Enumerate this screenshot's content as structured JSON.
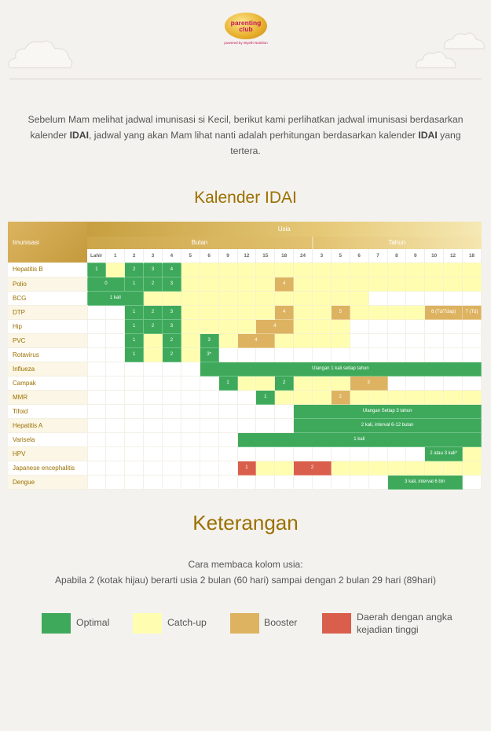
{
  "brand": {
    "logo_line1": "parenting",
    "logo_line2": "club",
    "logo_sub": "powered by Wyeth Nutrition"
  },
  "intro": {
    "part1": "Sebelum Mam melihat jadwal imunisasi si Kecil, berikut kami perlihatkan jadwal imunisasi berdasarkan kalender ",
    "bold1": "IDAI",
    "part2": ", jadwal yang akan Mam lihat nanti adalah perhitungan berdasarkan kalender ",
    "bold2": "IDAI",
    "part3": " yang tertera."
  },
  "calendar": {
    "title": "Kalender IDAI",
    "header_immunization": "Imunisasi",
    "header_age": "Usia",
    "header_months": "Bulan",
    "header_years": "Tahun",
    "ages": [
      "Lahir",
      "1",
      "2",
      "3",
      "4",
      "5",
      "6",
      "9",
      "12",
      "15",
      "18",
      "24",
      "3",
      "5",
      "6",
      "7",
      "8",
      "9",
      "10",
      "12",
      "18"
    ],
    "rows": [
      {
        "name": "Hepatitis B",
        "cells": [
          [
            "g",
            "1"
          ],
          [
            "y",
            ""
          ],
          [
            "g",
            "2"
          ],
          [
            "g",
            "3"
          ],
          [
            "g",
            "4"
          ],
          [
            "y",
            ""
          ],
          [
            "y",
            ""
          ],
          [
            "y",
            ""
          ],
          [
            "y",
            ""
          ],
          [
            "y",
            ""
          ],
          [
            "y",
            ""
          ],
          [
            "y",
            ""
          ],
          [
            "y",
            ""
          ],
          [
            "y",
            ""
          ],
          [
            "y",
            ""
          ],
          [
            "y",
            ""
          ],
          [
            "y",
            ""
          ],
          [
            "y",
            ""
          ],
          [
            "y",
            ""
          ],
          [
            "y",
            ""
          ],
          [
            "y",
            ""
          ]
        ]
      },
      {
        "name": "Polio",
        "cells": [
          [
            "g",
            "0",
            2
          ],
          [
            "g",
            "1"
          ],
          [
            "g",
            "2"
          ],
          [
            "g",
            "3"
          ],
          [
            "y",
            ""
          ],
          [
            "y",
            ""
          ],
          [
            "y",
            ""
          ],
          [
            "y",
            ""
          ],
          [
            "y",
            ""
          ],
          [
            "b",
            "4"
          ],
          [
            "y",
            ""
          ],
          [
            "y",
            ""
          ],
          [
            "y",
            ""
          ],
          [
            "y",
            ""
          ],
          [
            "y",
            ""
          ],
          [
            "y",
            ""
          ],
          [
            "y",
            ""
          ],
          [
            "y",
            ""
          ],
          [
            "y",
            ""
          ],
          [
            "y",
            ""
          ]
        ]
      },
      {
        "name": "BCG",
        "cells": [
          [
            "g",
            "1 kali",
            3
          ],
          [
            "y",
            ""
          ],
          [
            "y",
            ""
          ],
          [
            "y",
            ""
          ],
          [
            "y",
            ""
          ],
          [
            "y",
            ""
          ],
          [
            "y",
            ""
          ],
          [
            "y",
            ""
          ],
          [
            "y",
            ""
          ],
          [
            "y",
            ""
          ],
          [
            "y",
            ""
          ],
          [
            "y",
            ""
          ],
          [
            "y",
            ""
          ],
          [
            "w",
            ""
          ],
          [
            "w",
            ""
          ],
          [
            "w",
            ""
          ],
          [
            "w",
            ""
          ],
          [
            "w",
            ""
          ],
          [
            "w",
            ""
          ]
        ]
      },
      {
        "name": "DTP",
        "cells": [
          [
            "w",
            ""
          ],
          [
            "w",
            ""
          ],
          [
            "g",
            "1"
          ],
          [
            "g",
            "2"
          ],
          [
            "g",
            "3"
          ],
          [
            "y",
            ""
          ],
          [
            "y",
            ""
          ],
          [
            "y",
            ""
          ],
          [
            "y",
            ""
          ],
          [
            "y",
            ""
          ],
          [
            "b",
            "4"
          ],
          [
            "y",
            ""
          ],
          [
            "y",
            ""
          ],
          [
            "b",
            "5"
          ],
          [
            "y",
            ""
          ],
          [
            "y",
            ""
          ],
          [
            "y",
            ""
          ],
          [
            "y",
            ""
          ],
          [
            "b",
            "6 (Td/Tdap)",
            2
          ],
          [
            "b",
            "7 (Td)"
          ]
        ]
      },
      {
        "name": "Hip",
        "cells": [
          [
            "w",
            ""
          ],
          [
            "w",
            ""
          ],
          [
            "g",
            "1"
          ],
          [
            "g",
            "2"
          ],
          [
            "g",
            "3"
          ],
          [
            "y",
            ""
          ],
          [
            "y",
            ""
          ],
          [
            "y",
            ""
          ],
          [
            "y",
            ""
          ],
          [
            "b",
            "4",
            2
          ],
          [
            "y",
            ""
          ],
          [
            "y",
            ""
          ],
          [
            "y",
            ""
          ],
          [
            "w",
            ""
          ],
          [
            "w",
            ""
          ],
          [
            "w",
            ""
          ],
          [
            "w",
            ""
          ],
          [
            "w",
            ""
          ],
          [
            "w",
            ""
          ],
          [
            "w",
            ""
          ]
        ]
      },
      {
        "name": "PVC",
        "cells": [
          [
            "w",
            ""
          ],
          [
            "w",
            ""
          ],
          [
            "g",
            "1"
          ],
          [
            "y",
            ""
          ],
          [
            "g",
            "2"
          ],
          [
            "y",
            ""
          ],
          [
            "g",
            "3"
          ],
          [
            "y",
            ""
          ],
          [
            "b",
            "4",
            2
          ],
          [
            "y",
            ""
          ],
          [
            "y",
            ""
          ],
          [
            "y",
            ""
          ],
          [
            "y",
            ""
          ],
          [
            "w",
            ""
          ],
          [
            "w",
            ""
          ],
          [
            "w",
            ""
          ],
          [
            "w",
            ""
          ],
          [
            "w",
            ""
          ],
          [
            "w",
            ""
          ],
          [
            "w",
            ""
          ]
        ]
      },
      {
        "name": "Rotavirus",
        "cells": [
          [
            "w",
            ""
          ],
          [
            "w",
            ""
          ],
          [
            "g",
            "1"
          ],
          [
            "y",
            ""
          ],
          [
            "g",
            "2"
          ],
          [
            "y",
            ""
          ],
          [
            "g",
            "3*"
          ],
          [
            "w",
            ""
          ],
          [
            "w",
            ""
          ],
          [
            "w",
            ""
          ],
          [
            "w",
            ""
          ],
          [
            "w",
            ""
          ],
          [
            "w",
            ""
          ],
          [
            "w",
            ""
          ],
          [
            "w",
            ""
          ],
          [
            "w",
            ""
          ],
          [
            "w",
            ""
          ],
          [
            "w",
            ""
          ],
          [
            "w",
            ""
          ],
          [
            "w",
            ""
          ],
          [
            "w",
            ""
          ]
        ]
      },
      {
        "name": "Influeza",
        "cells": [
          [
            "w",
            ""
          ],
          [
            "w",
            ""
          ],
          [
            "w",
            ""
          ],
          [
            "w",
            ""
          ],
          [
            "w",
            ""
          ],
          [
            "w",
            ""
          ],
          [
            "g",
            "Ulangan 1 kali setiap tahun",
            15
          ]
        ]
      },
      {
        "name": "Campak",
        "cells": [
          [
            "w",
            ""
          ],
          [
            "w",
            ""
          ],
          [
            "w",
            ""
          ],
          [
            "w",
            ""
          ],
          [
            "w",
            ""
          ],
          [
            "w",
            ""
          ],
          [
            "w",
            ""
          ],
          [
            "g",
            "1"
          ],
          [
            "y",
            ""
          ],
          [
            "y",
            ""
          ],
          [
            "g",
            "2"
          ],
          [
            "y",
            ""
          ],
          [
            "y",
            ""
          ],
          [
            "y",
            ""
          ],
          [
            "b",
            "3",
            2
          ],
          [
            "w",
            ""
          ],
          [
            "w",
            ""
          ],
          [
            "w",
            ""
          ],
          [
            "w",
            ""
          ],
          [
            "w",
            ""
          ]
        ]
      },
      {
        "name": "MMR",
        "cells": [
          [
            "w",
            ""
          ],
          [
            "w",
            ""
          ],
          [
            "w",
            ""
          ],
          [
            "w",
            ""
          ],
          [
            "w",
            ""
          ],
          [
            "w",
            ""
          ],
          [
            "w",
            ""
          ],
          [
            "w",
            ""
          ],
          [
            "w",
            ""
          ],
          [
            "g",
            "1"
          ],
          [
            "y",
            ""
          ],
          [
            "y",
            ""
          ],
          [
            "y",
            ""
          ],
          [
            "b",
            "2"
          ],
          [
            "y",
            ""
          ],
          [
            "y",
            ""
          ],
          [
            "y",
            ""
          ],
          [
            "y",
            ""
          ],
          [
            "y",
            ""
          ],
          [
            "y",
            ""
          ],
          [
            "y",
            ""
          ]
        ]
      },
      {
        "name": "Tifoid",
        "cells": [
          [
            "w",
            ""
          ],
          [
            "w",
            ""
          ],
          [
            "w",
            ""
          ],
          [
            "w",
            ""
          ],
          [
            "w",
            ""
          ],
          [
            "w",
            ""
          ],
          [
            "w",
            ""
          ],
          [
            "w",
            ""
          ],
          [
            "w",
            ""
          ],
          [
            "w",
            ""
          ],
          [
            "w",
            ""
          ],
          [
            "g",
            "Ulangan Setiap 3 tahun",
            10
          ]
        ]
      },
      {
        "name": "Hepatitis A",
        "cells": [
          [
            "w",
            ""
          ],
          [
            "w",
            ""
          ],
          [
            "w",
            ""
          ],
          [
            "w",
            ""
          ],
          [
            "w",
            ""
          ],
          [
            "w",
            ""
          ],
          [
            "w",
            ""
          ],
          [
            "w",
            ""
          ],
          [
            "w",
            ""
          ],
          [
            "w",
            ""
          ],
          [
            "w",
            ""
          ],
          [
            "g",
            "2 kali, interval 6-12 bulan",
            10
          ]
        ]
      },
      {
        "name": "Varisela",
        "cells": [
          [
            "w",
            ""
          ],
          [
            "w",
            ""
          ],
          [
            "w",
            ""
          ],
          [
            "w",
            ""
          ],
          [
            "w",
            ""
          ],
          [
            "w",
            ""
          ],
          [
            "w",
            ""
          ],
          [
            "w",
            ""
          ],
          [
            "g",
            "1 kali",
            13
          ]
        ]
      },
      {
        "name": "HPV",
        "cells": [
          [
            "w",
            ""
          ],
          [
            "w",
            ""
          ],
          [
            "w",
            ""
          ],
          [
            "w",
            ""
          ],
          [
            "w",
            ""
          ],
          [
            "w",
            ""
          ],
          [
            "w",
            ""
          ],
          [
            "w",
            ""
          ],
          [
            "w",
            ""
          ],
          [
            "w",
            ""
          ],
          [
            "w",
            ""
          ],
          [
            "w",
            ""
          ],
          [
            "w",
            ""
          ],
          [
            "w",
            ""
          ],
          [
            "w",
            ""
          ],
          [
            "w",
            ""
          ],
          [
            "w",
            ""
          ],
          [
            "w",
            ""
          ],
          [
            "g",
            "2 atau 3 kali*",
            2
          ],
          [
            "y",
            ""
          ]
        ]
      },
      {
        "name": "Japanese encephalitis",
        "cells": [
          [
            "w",
            ""
          ],
          [
            "w",
            ""
          ],
          [
            "w",
            ""
          ],
          [
            "w",
            ""
          ],
          [
            "w",
            ""
          ],
          [
            "w",
            ""
          ],
          [
            "w",
            ""
          ],
          [
            "w",
            ""
          ],
          [
            "r",
            "1"
          ],
          [
            "y",
            ""
          ],
          [
            "y",
            ""
          ],
          [
            "r",
            "2",
            2
          ],
          [
            "y",
            ""
          ],
          [
            "y",
            ""
          ],
          [
            "y",
            ""
          ],
          [
            "y",
            ""
          ],
          [
            "y",
            ""
          ],
          [
            "y",
            ""
          ],
          [
            "y",
            ""
          ],
          [
            "y",
            ""
          ]
        ]
      },
      {
        "name": "Dengue",
        "cells": [
          [
            "w",
            ""
          ],
          [
            "w",
            ""
          ],
          [
            "w",
            ""
          ],
          [
            "w",
            ""
          ],
          [
            "w",
            ""
          ],
          [
            "w",
            ""
          ],
          [
            "w",
            ""
          ],
          [
            "w",
            ""
          ],
          [
            "w",
            ""
          ],
          [
            "w",
            ""
          ],
          [
            "w",
            ""
          ],
          [
            "w",
            ""
          ],
          [
            "w",
            ""
          ],
          [
            "w",
            ""
          ],
          [
            "w",
            ""
          ],
          [
            "w",
            ""
          ],
          [
            "g",
            "3 kali, interval 6 bln",
            4
          ],
          [
            "w",
            ""
          ]
        ]
      }
    ]
  },
  "keterangan": {
    "title": "Keterangan",
    "line1": "Cara membaca kolom usia:",
    "line2": "Apabila 2 (kotak hijau) berarti usia 2 bulan (60 hari) sampai dengan 2 bulan 29 hari (89hari)",
    "legend": [
      {
        "label": "Optimal",
        "color": "#3fa95b"
      },
      {
        "label": "Catch-up",
        "color": "#fffeb0"
      },
      {
        "label": "Booster",
        "color": "#ddb361"
      },
      {
        "label": "Daerah dengan angka kejadian tinggi",
        "color": "#d95f4c"
      }
    ]
  }
}
